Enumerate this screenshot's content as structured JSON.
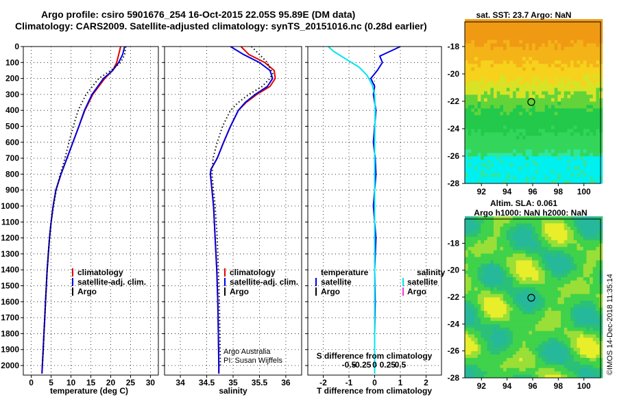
{
  "header": {
    "title_line1": "Argo profile: csiro 5901676_254 16-Oct-2015 22.05S 95.89E (DM data)",
    "title_line2": "Climatology: CARS2009. Satellite-adjusted climatology: synTS_20151016.nc (0.28d earlier)"
  },
  "colors": {
    "climatology": "#e00000",
    "satellite_adj": "#0000e0",
    "argo": "#000000",
    "salinity_sat": "#00e5ee",
    "salinity_argo": "#ff33cc"
  },
  "chart_data": [
    {
      "type": "line",
      "id": "temperature",
      "xlabel": "temperature (deg C)",
      "xlim": [
        -2,
        32
      ],
      "xticks": [
        0,
        5,
        10,
        15,
        20,
        25,
        30
      ],
      "ylim": [
        2060,
        0
      ],
      "yticks": [
        0,
        100,
        200,
        300,
        400,
        500,
        600,
        700,
        800,
        900,
        1000,
        1100,
        1200,
        1300,
        1400,
        1500,
        1600,
        1700,
        1800,
        1900,
        2000
      ],
      "legend": [
        "climatology",
        "satellite-adj. clim.",
        "Argo"
      ],
      "series": [
        {
          "name": "climatology",
          "style": "solid",
          "color": "#e00000",
          "points": [
            [
              22.5,
              0
            ],
            [
              22.0,
              50
            ],
            [
              21.5,
              100
            ],
            [
              20.5,
              150
            ],
            [
              18.5,
              200
            ],
            [
              15.5,
              300
            ],
            [
              13.5,
              400
            ],
            [
              12.0,
              500
            ],
            [
              10.5,
              600
            ],
            [
              9.0,
              700
            ],
            [
              7.5,
              800
            ],
            [
              6.2,
              900
            ],
            [
              5.5,
              1000
            ],
            [
              5.0,
              1100
            ],
            [
              4.6,
              1200
            ],
            [
              4.3,
              1300
            ],
            [
              4.0,
              1400
            ],
            [
              3.8,
              1500
            ],
            [
              3.6,
              1600
            ],
            [
              3.4,
              1700
            ],
            [
              3.2,
              1800
            ],
            [
              3.0,
              1900
            ],
            [
              2.8,
              2000
            ],
            [
              2.7,
              2050
            ]
          ]
        },
        {
          "name": "satellite-adj. clim.",
          "style": "solid",
          "color": "#0000e0",
          "points": [
            [
              23.5,
              0
            ],
            [
              23.0,
              50
            ],
            [
              22.0,
              100
            ],
            [
              20.5,
              150
            ],
            [
              18.2,
              200
            ],
            [
              15.3,
              300
            ],
            [
              13.4,
              400
            ],
            [
              12.0,
              500
            ],
            [
              10.5,
              600
            ],
            [
              9.0,
              700
            ],
            [
              7.5,
              800
            ],
            [
              6.2,
              900
            ],
            [
              5.5,
              1000
            ],
            [
              5.0,
              1100
            ],
            [
              4.6,
              1200
            ],
            [
              4.3,
              1300
            ],
            [
              4.0,
              1400
            ],
            [
              3.8,
              1500
            ],
            [
              3.6,
              1600
            ],
            [
              3.4,
              1700
            ],
            [
              3.2,
              1800
            ],
            [
              3.0,
              1900
            ],
            [
              2.8,
              2000
            ],
            [
              2.7,
              2050
            ]
          ]
        },
        {
          "name": "Argo",
          "style": "dotted",
          "color": "#000000",
          "points": [
            [
              23.8,
              0
            ],
            [
              23.5,
              50
            ],
            [
              22.5,
              100
            ],
            [
              20.0,
              150
            ],
            [
              17.0,
              200
            ],
            [
              13.8,
              300
            ],
            [
              11.8,
              400
            ],
            [
              10.6,
              500
            ],
            [
              9.5,
              600
            ],
            [
              8.5,
              700
            ],
            [
              7.3,
              800
            ],
            [
              6.3,
              900
            ],
            [
              5.6,
              1000
            ],
            [
              5.0,
              1100
            ],
            [
              4.6,
              1200
            ],
            [
              4.3,
              1300
            ],
            [
              4.0,
              1400
            ],
            [
              3.8,
              1500
            ],
            [
              3.6,
              1600
            ],
            [
              3.4,
              1700
            ],
            [
              3.2,
              1800
            ],
            [
              3.0,
              1900
            ],
            [
              2.8,
              2000
            ]
          ]
        }
      ]
    },
    {
      "type": "line",
      "id": "salinity",
      "xlabel": "salinity",
      "xlim": [
        33.7,
        36.3
      ],
      "xticks": [
        34,
        34.5,
        35,
        35.5,
        36
      ],
      "xticklabels": [
        "34",
        "34.5",
        "35",
        "35.5",
        "36"
      ],
      "ylim": [
        2060,
        0
      ],
      "legend": [
        "climatology",
        "satellite-adj. clim.",
        "Argo"
      ],
      "annotations": [
        "Argo Australia",
        "PI: Susan Wijffels"
      ],
      "series": [
        {
          "name": "climatology",
          "style": "solid",
          "color": "#e00000",
          "points": [
            [
              35.15,
              0
            ],
            [
              35.3,
              50
            ],
            [
              35.6,
              100
            ],
            [
              35.78,
              150
            ],
            [
              35.8,
              200
            ],
            [
              35.7,
              250
            ],
            [
              35.45,
              300
            ],
            [
              35.25,
              350
            ],
            [
              35.1,
              400
            ],
            [
              34.95,
              500
            ],
            [
              34.82,
              600
            ],
            [
              34.7,
              700
            ],
            [
              34.58,
              770
            ],
            [
              34.57,
              800
            ],
            [
              34.6,
              900
            ],
            [
              34.63,
              1000
            ],
            [
              34.66,
              1200
            ],
            [
              34.69,
              1400
            ],
            [
              34.71,
              1600
            ],
            [
              34.72,
              1800
            ],
            [
              34.73,
              2000
            ],
            [
              34.73,
              2050
            ]
          ]
        },
        {
          "name": "satellite-adj. clim.",
          "style": "solid",
          "color": "#0000e0",
          "points": [
            [
              34.95,
              0
            ],
            [
              35.2,
              50
            ],
            [
              35.5,
              100
            ],
            [
              35.7,
              150
            ],
            [
              35.75,
              200
            ],
            [
              35.65,
              250
            ],
            [
              35.42,
              300
            ],
            [
              35.23,
              350
            ],
            [
              35.1,
              400
            ],
            [
              34.95,
              500
            ],
            [
              34.82,
              600
            ],
            [
              34.7,
              700
            ],
            [
              34.58,
              770
            ],
            [
              34.57,
              800
            ],
            [
              34.6,
              900
            ],
            [
              34.63,
              1000
            ],
            [
              34.66,
              1200
            ],
            [
              34.69,
              1400
            ],
            [
              34.71,
              1600
            ],
            [
              34.72,
              1800
            ],
            [
              34.73,
              2000
            ],
            [
              34.73,
              2050
            ]
          ]
        },
        {
          "name": "Argo",
          "style": "dotted",
          "color": "#000000",
          "points": [
            [
              35.35,
              0
            ],
            [
              35.5,
              50
            ],
            [
              35.65,
              100
            ],
            [
              35.75,
              170
            ],
            [
              35.7,
              200
            ],
            [
              35.55,
              250
            ],
            [
              35.3,
              300
            ],
            [
              35.1,
              350
            ],
            [
              34.95,
              400
            ],
            [
              34.8,
              500
            ],
            [
              34.7,
              600
            ],
            [
              34.62,
              700
            ],
            [
              34.6,
              800
            ],
            [
              34.63,
              900
            ],
            [
              34.66,
              1000
            ],
            [
              34.7,
              1200
            ],
            [
              34.72,
              1400
            ],
            [
              34.74,
              1600
            ],
            [
              34.75,
              1800
            ],
            [
              34.76,
              2000
            ]
          ]
        }
      ]
    },
    {
      "type": "line",
      "id": "difference",
      "xlabel": "T difference from climatology",
      "xlabel_top": "S difference from climatology",
      "xlim": [
        -2.6,
        2.6
      ],
      "xticks": [
        -2,
        -1,
        0,
        1,
        2
      ],
      "xticklabels": [
        "-2",
        "-1",
        "0",
        "1",
        "2"
      ],
      "sticks": [
        -1.0,
        -0.5,
        0,
        0.5,
        1.0
      ],
      "sticklabels": [
        "-0.5",
        "-0.25",
        "0",
        "0.25",
        "0.5"
      ],
      "ylim": [
        2060,
        0
      ],
      "legend_left_title": "temperature",
      "legend_right_title": "salinity",
      "legend_left": [
        "satellite",
        "Argo"
      ],
      "legend_right": [
        "satellite",
        "Argo"
      ],
      "series": [
        {
          "name": "satellite",
          "style": "solid",
          "color": "#0000e0",
          "points": [
            [
              1.0,
              0
            ],
            [
              0.6,
              30
            ],
            [
              0.2,
              60
            ],
            [
              0.3,
              100
            ],
            [
              0.1,
              150
            ],
            [
              -0.15,
              200
            ],
            [
              0,
              250
            ],
            [
              -0.05,
              300
            ],
            [
              0.05,
              400
            ],
            [
              0,
              500
            ],
            [
              -0.05,
              600
            ],
            [
              0.02,
              700
            ],
            [
              0.05,
              800
            ],
            [
              0,
              900
            ],
            [
              -0.05,
              1000
            ],
            [
              0.05,
              1200
            ],
            [
              0,
              1400
            ],
            [
              0.02,
              1600
            ],
            [
              0,
              1800
            ],
            [
              0,
              2000
            ],
            [
              0,
              2050
            ]
          ]
        },
        {
          "name": "satellite",
          "style": "solid",
          "color": "#00e5ee",
          "points": [
            [
              -1.8,
              0
            ],
            [
              -1.6,
              30
            ],
            [
              -1.3,
              60
            ],
            [
              -1.0,
              90
            ],
            [
              -0.6,
              130
            ],
            [
              -0.3,
              180
            ],
            [
              -0.1,
              240
            ],
            [
              0,
              300
            ],
            [
              0.02,
              400
            ],
            [
              0,
              600
            ],
            [
              0,
              800
            ],
            [
              0,
              1000
            ],
            [
              0,
              1200
            ],
            [
              0,
              1400
            ],
            [
              0,
              1600
            ],
            [
              0,
              1800
            ],
            [
              0,
              2000
            ],
            [
              0,
              2050
            ]
          ]
        }
      ]
    }
  ],
  "maps": [
    {
      "id": "sst",
      "title": "sat. SST: 23.7 Argo: NaN",
      "xlim": [
        90.7,
        101.3
      ],
      "ylim": [
        -28,
        -16.2
      ],
      "xticks": [
        92,
        94,
        96,
        98,
        100
      ],
      "yticks": [
        -18,
        -20,
        -22,
        -24,
        -26,
        -28
      ],
      "marker": [
        95.89,
        -22.05
      ]
    },
    {
      "id": "sla",
      "title_line1": "Altim. SLA: 0.061",
      "title_line2": "Argo h1000: NaN h2000: NaN",
      "xlim": [
        90.7,
        101.3
      ],
      "ylim": [
        -28,
        -16.2
      ],
      "xticks": [
        92,
        94,
        96,
        98,
        100
      ],
      "yticks": [
        -18,
        -20,
        -22,
        -24,
        -26,
        -28
      ],
      "marker": [
        95.89,
        -22.05
      ]
    }
  ],
  "footer": {
    "stamp": "©IMOS 14-Dec-2018 11:35:14"
  }
}
